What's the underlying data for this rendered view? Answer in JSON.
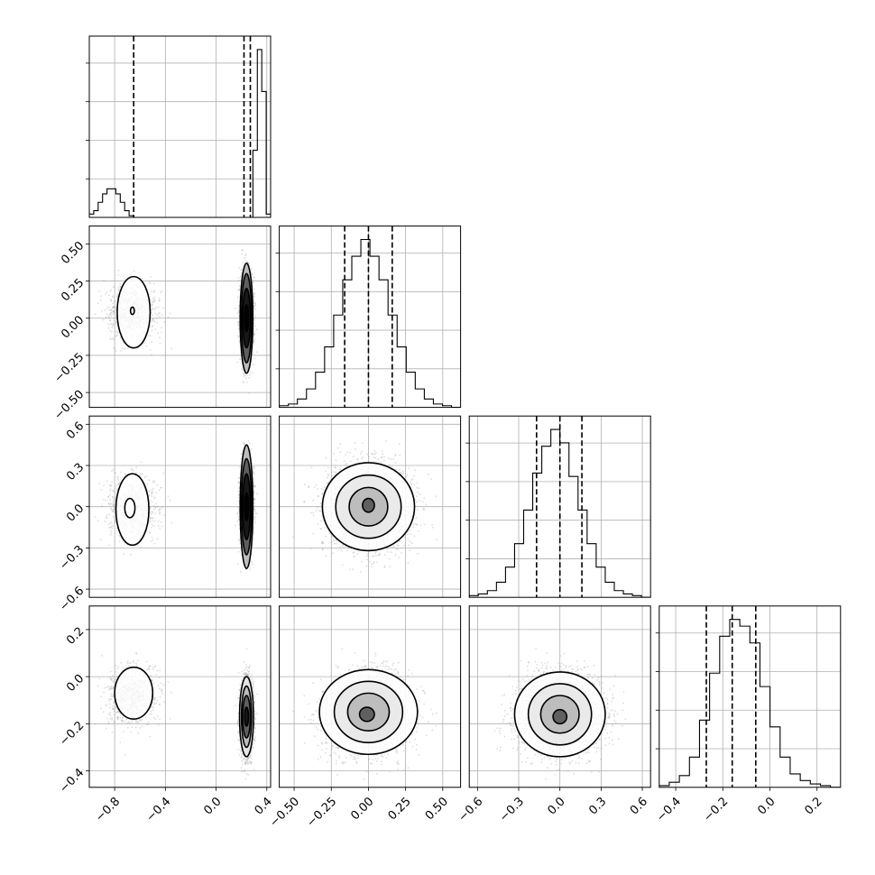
{
  "chart_data": {
    "type": "corner",
    "grid": true,
    "n_params": 4,
    "params": [
      {
        "xlim": [
          -1.0,
          0.43
        ],
        "ticks": [
          "−0.8",
          "−0.4",
          "0.0",
          "0.4"
        ],
        "tick_values": [
          -0.8,
          -0.4,
          0.0,
          0.4
        ]
      },
      {
        "xlim": [
          -0.6,
          0.62
        ],
        "ticks": [
          "−0.50",
          "−0.25",
          "0.00",
          "0.25",
          "0.50"
        ],
        "tick_values": [
          -0.5,
          -0.25,
          0.0,
          0.25,
          0.5
        ]
      },
      {
        "xlim": [
          -0.66,
          0.66
        ],
        "ticks": [
          "−0.6",
          "−0.3",
          "0.0",
          "0.3",
          "0.6"
        ],
        "tick_values": [
          -0.6,
          -0.3,
          0.0,
          0.3,
          0.6
        ]
      },
      {
        "xlim": [
          -0.47,
          0.3
        ],
        "ticks": [
          "−0.4",
          "−0.2",
          "0.0",
          "0.2"
        ],
        "tick_values": [
          -0.4,
          -0.2,
          0.0,
          0.2
        ]
      }
    ],
    "modes": [
      {
        "weight": 0.22,
        "mean": [
          -0.66,
          0.04,
          -0.01,
          -0.08
        ],
        "sd": [
          0.09,
          0.1,
          0.11,
          0.06
        ]
      },
      {
        "weight": 0.78,
        "mean": [
          0.24,
          0.0,
          0.0,
          -0.17
        ],
        "sd": [
          0.022,
          0.14,
          0.15,
          0.075
        ]
      }
    ],
    "histograms": [
      {
        "bins": [
          -1.0,
          0.43
        ],
        "counts": [
          2,
          4,
          9,
          14,
          17,
          17,
          14,
          9,
          4,
          1,
          0,
          0,
          0,
          0,
          0,
          0,
          0,
          0,
          0,
          0,
          0,
          0,
          0,
          0,
          0,
          0,
          0,
          0,
          0,
          0,
          0,
          0,
          0,
          0,
          0,
          0,
          0,
          40,
          100,
          75,
          2
        ],
        "nbins": 41,
        "quantiles": [
          -0.65,
          0.22,
          0.27
        ]
      },
      {
        "bins": [
          -0.6,
          0.62
        ],
        "counts": [
          1,
          2,
          5,
          11,
          21,
          36,
          55,
          76,
          90,
          100,
          90,
          76,
          55,
          36,
          21,
          11,
          5,
          2,
          1,
          0
        ],
        "nbins": 20,
        "quantiles": [
          -0.16,
          0.0,
          0.16
        ]
      },
      {
        "bins": [
          -0.66,
          0.66
        ],
        "counts": [
          1,
          2,
          4,
          9,
          18,
          32,
          52,
          74,
          90,
          100,
          92,
          72,
          52,
          32,
          18,
          9,
          4,
          2,
          1,
          0
        ],
        "nbins": 20,
        "quantiles": [
          -0.17,
          0.0,
          0.16
        ]
      },
      {
        "bins": [
          -0.47,
          0.3
        ],
        "counts": [
          1,
          3,
          7,
          18,
          40,
          68,
          90,
          100,
          96,
          86,
          60,
          36,
          18,
          8,
          4,
          2,
          1,
          0
        ],
        "nbins": 18,
        "quantiles": [
          -0.27,
          -0.16,
          -0.06
        ]
      }
    ],
    "contours": [
      {
        "i": 0,
        "j": 1,
        "shapes": [
          {
            "cx": -0.65,
            "cy": 0.04,
            "rx": 0.13,
            "ry": 0.24
          },
          {
            "cx": -0.66,
            "cy": 0.05,
            "rx": 0.015,
            "ry": 0.025
          },
          {
            "cx": 0.24,
            "cy": 0.0,
            "rx": 0.05,
            "ry": 0.37
          },
          {
            "cx": 0.24,
            "cy": 0.0,
            "rx": 0.04,
            "ry": 0.3
          },
          {
            "cx": 0.24,
            "cy": 0.0,
            "rx": 0.03,
            "ry": 0.2
          },
          {
            "cx": 0.24,
            "cy": 0.0,
            "rx": 0.015,
            "ry": 0.09
          }
        ]
      },
      {
        "i": 0,
        "j": 2,
        "shapes": [
          {
            "cx": -0.66,
            "cy": -0.02,
            "rx": 0.13,
            "ry": 0.26
          },
          {
            "cx": -0.68,
            "cy": -0.01,
            "rx": 0.04,
            "ry": 0.07
          },
          {
            "cx": 0.24,
            "cy": 0.0,
            "rx": 0.05,
            "ry": 0.45
          },
          {
            "cx": 0.24,
            "cy": 0.0,
            "rx": 0.04,
            "ry": 0.35
          },
          {
            "cx": 0.24,
            "cy": 0.0,
            "rx": 0.03,
            "ry": 0.24
          },
          {
            "cx": 0.24,
            "cy": 0.0,
            "rx": 0.015,
            "ry": 0.1
          }
        ]
      },
      {
        "i": 0,
        "j": 3,
        "shapes": [
          {
            "cx": -0.65,
            "cy": -0.07,
            "rx": 0.15,
            "ry": 0.11
          },
          {
            "cx": 0.24,
            "cy": -0.17,
            "rx": 0.055,
            "ry": 0.17
          },
          {
            "cx": 0.24,
            "cy": -0.17,
            "rx": 0.04,
            "ry": 0.13
          },
          {
            "cx": 0.24,
            "cy": -0.17,
            "rx": 0.03,
            "ry": 0.09
          },
          {
            "cx": 0.24,
            "cy": -0.17,
            "rx": 0.015,
            "ry": 0.04
          }
        ]
      },
      {
        "i": 1,
        "j": 2,
        "shapes": [
          {
            "cx": 0.0,
            "cy": 0.0,
            "rx": 0.31,
            "ry": 0.32
          },
          {
            "cx": 0.0,
            "cy": 0.0,
            "rx": 0.22,
            "ry": 0.23
          },
          {
            "cx": 0.0,
            "cy": 0.0,
            "rx": 0.13,
            "ry": 0.14
          },
          {
            "cx": 0.0,
            "cy": 0.01,
            "rx": 0.04,
            "ry": 0.05
          }
        ]
      },
      {
        "i": 1,
        "j": 3,
        "shapes": [
          {
            "cx": 0.0,
            "cy": -0.15,
            "rx": 0.33,
            "ry": 0.18
          },
          {
            "cx": 0.0,
            "cy": -0.15,
            "rx": 0.23,
            "ry": 0.13
          },
          {
            "cx": 0.0,
            "cy": -0.15,
            "rx": 0.14,
            "ry": 0.08
          },
          {
            "cx": -0.01,
            "cy": -0.16,
            "rx": 0.05,
            "ry": 0.03
          }
        ]
      },
      {
        "i": 2,
        "j": 3,
        "shapes": [
          {
            "cx": 0.0,
            "cy": -0.16,
            "rx": 0.33,
            "ry": 0.18
          },
          {
            "cx": 0.0,
            "cy": -0.16,
            "rx": 0.23,
            "ry": 0.13
          },
          {
            "cx": 0.0,
            "cy": -0.16,
            "rx": 0.14,
            "ry": 0.08
          },
          {
            "cx": 0.0,
            "cy": -0.17,
            "rx": 0.05,
            "ry": 0.03
          }
        ]
      }
    ]
  }
}
